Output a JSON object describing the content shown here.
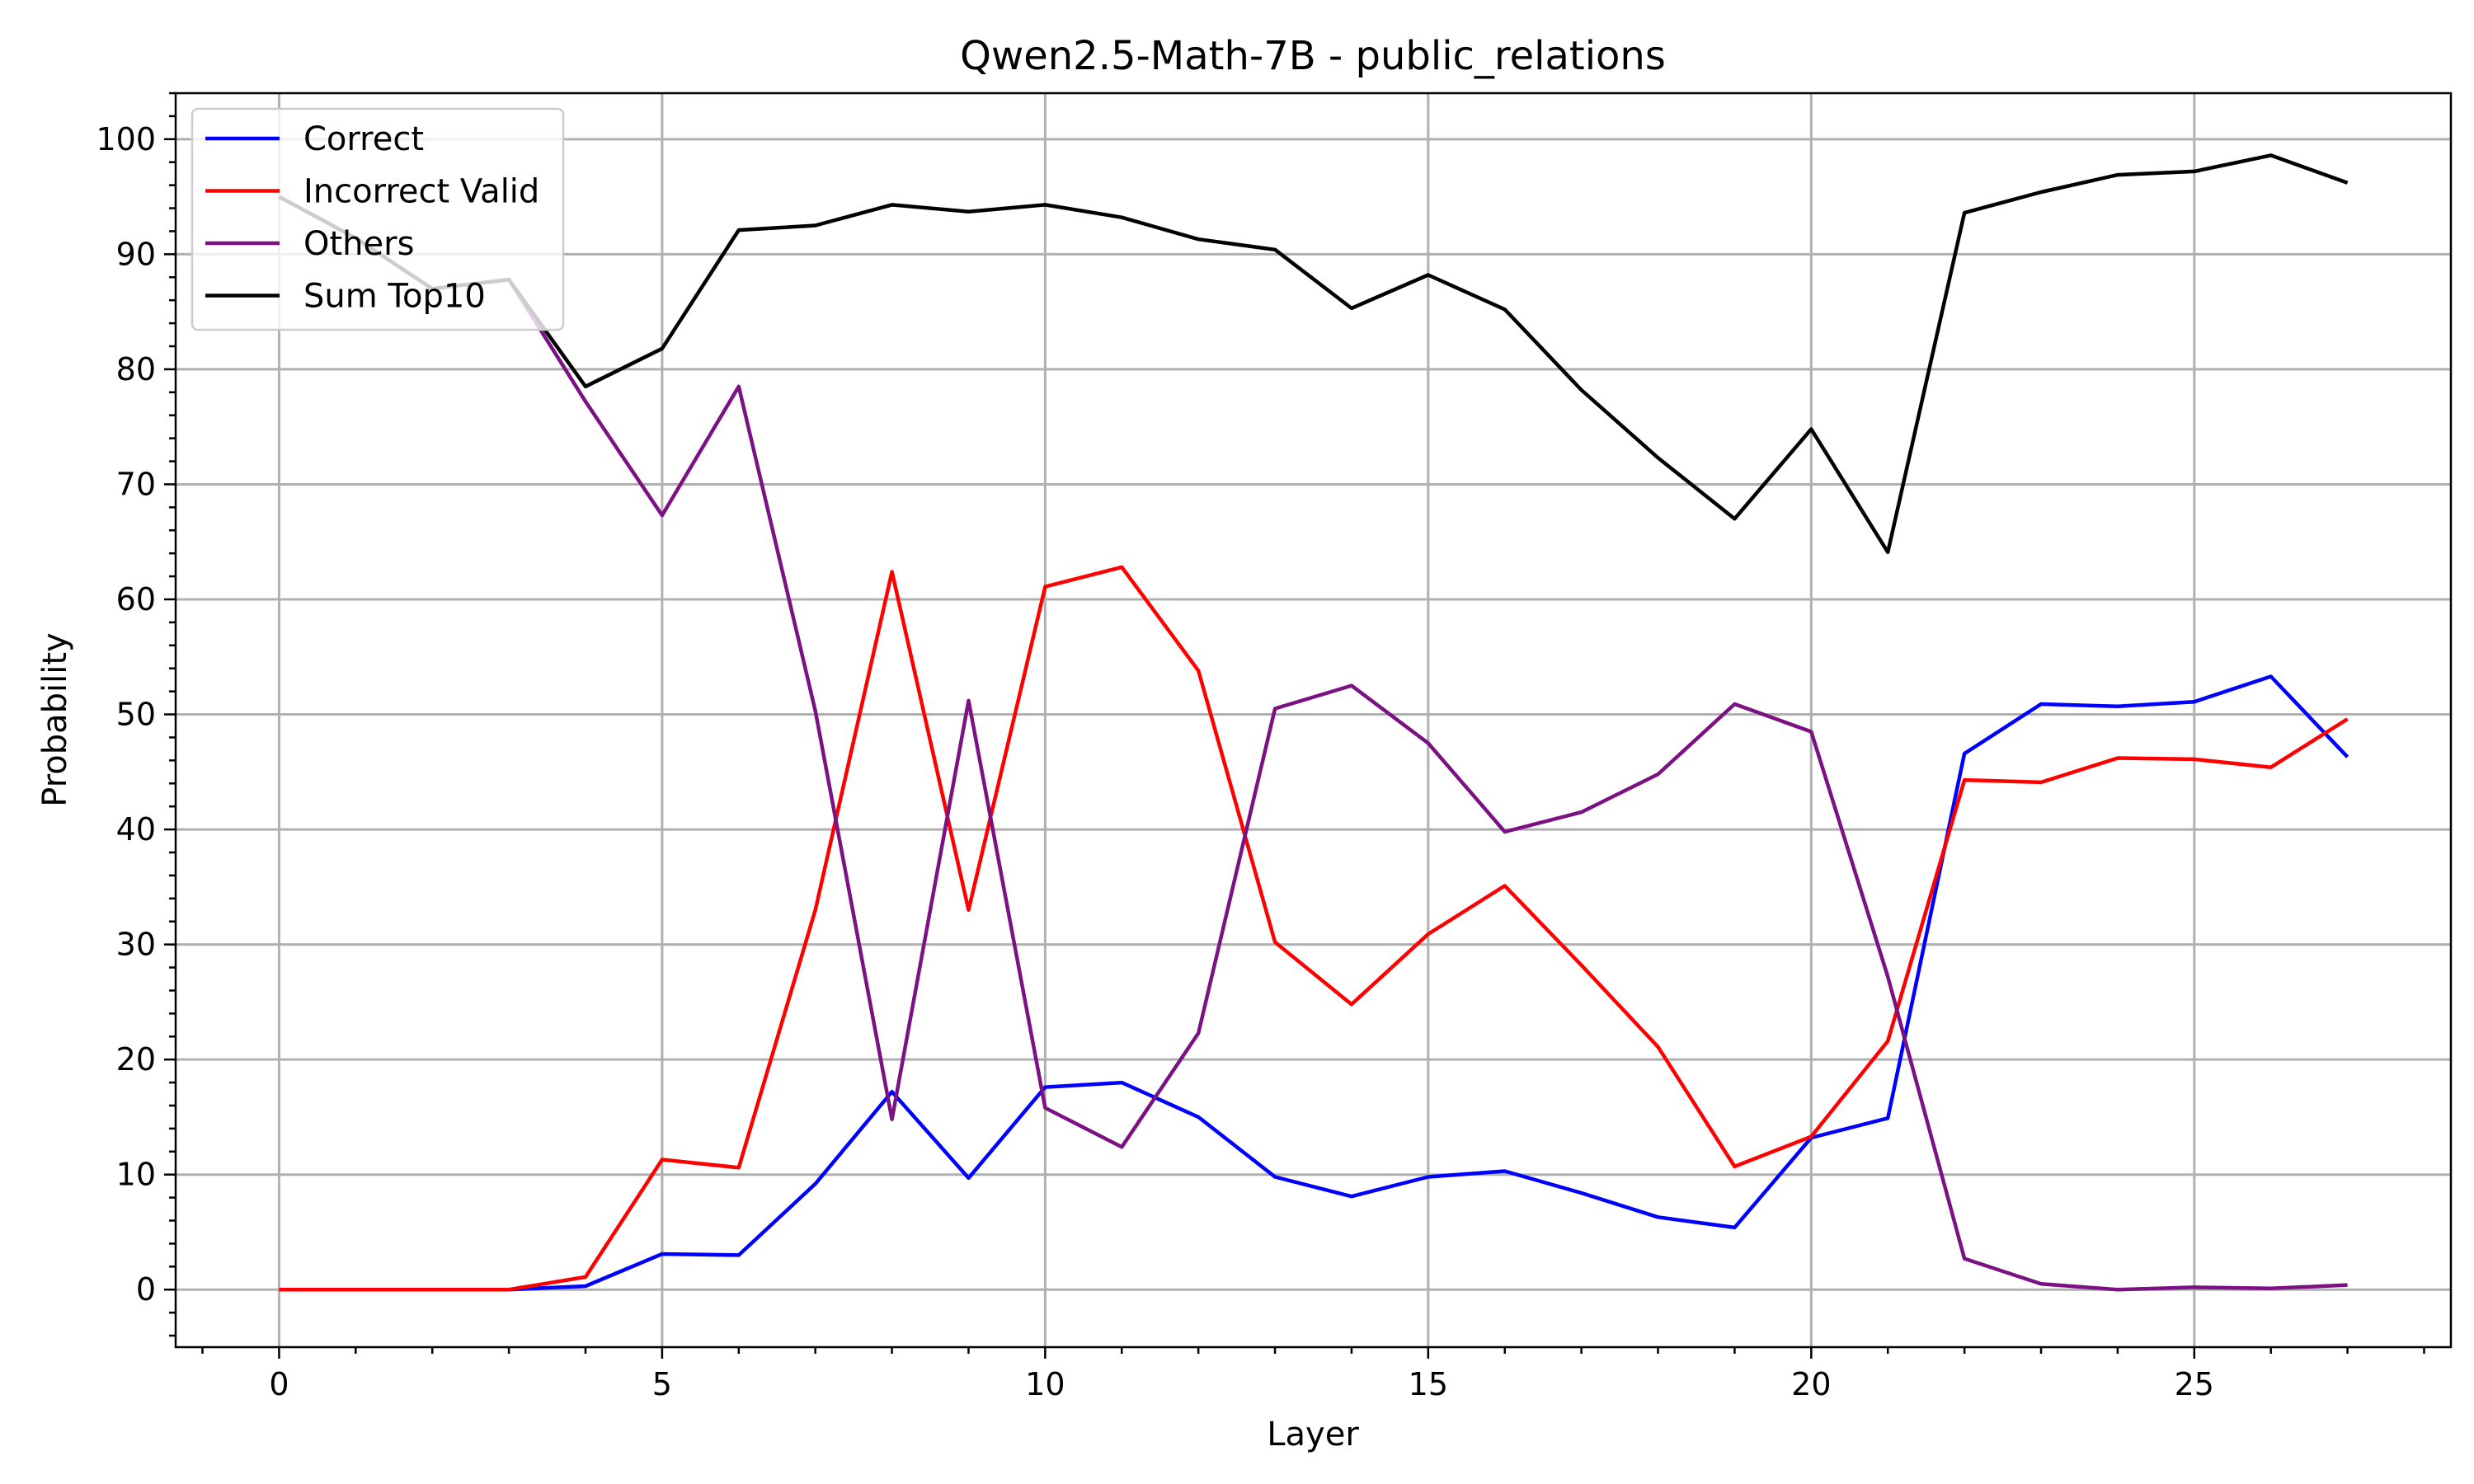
{
  "chart_data": {
    "type": "line",
    "title": "Qwen2.5-Math-7B - public_relations",
    "xlabel": "Layer",
    "ylabel": "Probability",
    "xlim": [
      -1.35,
      28.35
    ],
    "ylim": [
      -5,
      104
    ],
    "xticks": [
      0,
      5,
      10,
      15,
      20,
      25
    ],
    "yticks": [
      0,
      10,
      20,
      30,
      40,
      50,
      60,
      70,
      80,
      90,
      100
    ],
    "grid": true,
    "legend_position": "top-left",
    "x": [
      0,
      1,
      2,
      3,
      4,
      5,
      6,
      7,
      8,
      9,
      10,
      11,
      12,
      13,
      14,
      15,
      16,
      17,
      18,
      19,
      20,
      21,
      22,
      23,
      24,
      25,
      26,
      27
    ],
    "series": [
      {
        "name": "Correct",
        "color": "#0000ff",
        "values": [
          0,
          0,
          0,
          0,
          0.3,
          3.1,
          3.0,
          9.2,
          17.2,
          9.7,
          17.6,
          18.0,
          15.0,
          9.8,
          8.1,
          9.8,
          10.3,
          8.4,
          6.3,
          5.4,
          13.2,
          14.9,
          46.6,
          50.9,
          50.7,
          51.1,
          53.3,
          46.3
        ]
      },
      {
        "name": "Incorrect Valid",
        "color": "#ff0000",
        "values": [
          0,
          0,
          0,
          0,
          1.1,
          11.3,
          10.6,
          33.0,
          62.4,
          33.0,
          61.1,
          62.8,
          53.8,
          30.2,
          24.8,
          30.9,
          35.1,
          28.2,
          21.1,
          10.7,
          13.3,
          21.6,
          44.3,
          44.1,
          46.2,
          46.1,
          45.4,
          49.6
        ]
      },
      {
        "name": "Others",
        "color": "#7b1183",
        "values": [
          95.0,
          91.4,
          87.0,
          87.8,
          77.2,
          67.3,
          78.5,
          50.3,
          14.8,
          51.2,
          15.8,
          12.4,
          22.3,
          50.5,
          52.5,
          47.5,
          39.8,
          41.5,
          44.8,
          50.9,
          48.5,
          27.2,
          2.7,
          0.5,
          0.0,
          0.2,
          0.1,
          0.4
        ]
      },
      {
        "name": "Sum Top10",
        "color": "#000000",
        "values": [
          95.0,
          91.4,
          87.0,
          87.8,
          78.5,
          81.8,
          92.1,
          92.5,
          94.3,
          93.7,
          94.3,
          93.2,
          91.3,
          90.4,
          85.3,
          88.2,
          85.2,
          78.2,
          72.3,
          67.0,
          74.8,
          64.1,
          93.6,
          95.4,
          96.9,
          97.2,
          98.6,
          96.2
        ]
      }
    ]
  }
}
